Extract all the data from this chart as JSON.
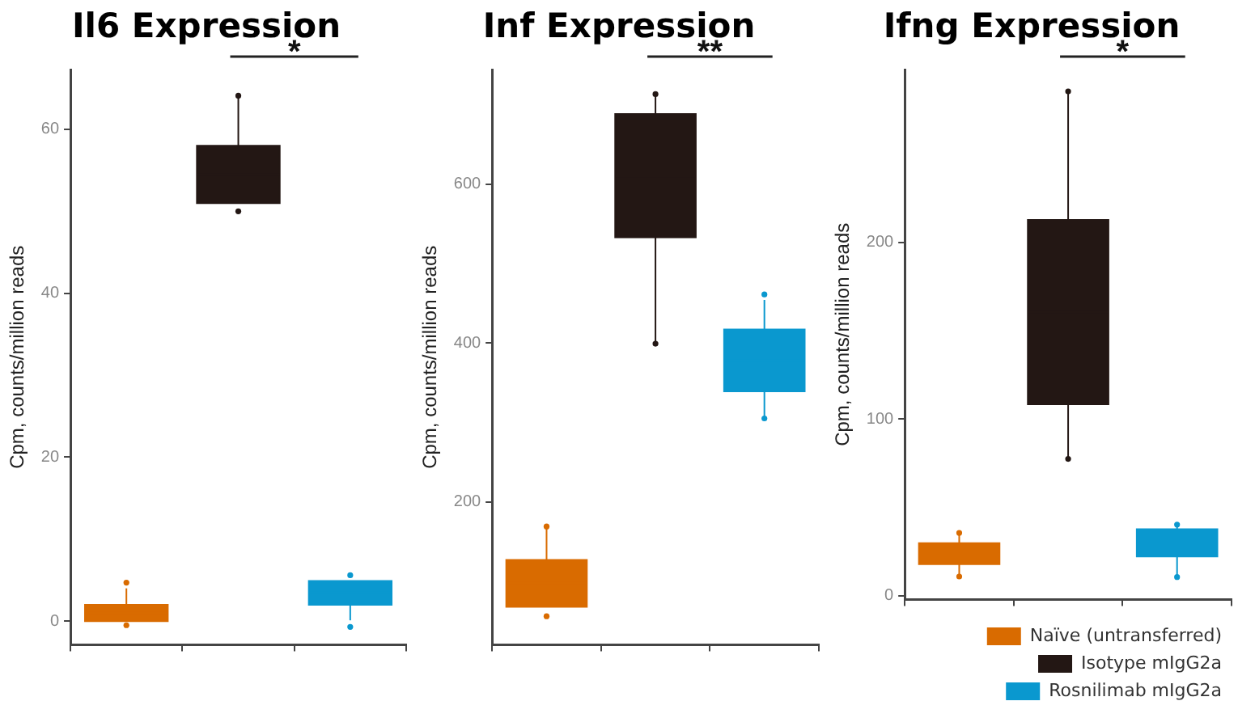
{
  "chart_data": [
    {
      "type": "box",
      "title": "Il6 Expression",
      "ylabel": "Cpm, counts/million reads",
      "categories": [
        null,
        null,
        null
      ],
      "ylim": [
        -2.9,
        67.3
      ],
      "yticks": [
        0,
        20,
        40,
        60
      ],
      "grid": false,
      "annotations": [
        "*"
      ],
      "series": [
        {
          "color": "#d96b00",
          "boxes": [
            {
              "low": 0,
              "q1": 0,
              "median": 1,
              "q3": 2,
              "high": 4,
              "outliers": [
                4.7,
                -0.5
              ]
            },
            null,
            null
          ]
        },
        {
          "color": "#231714",
          "boxes": [
            null,
            {
              "low": 51,
              "q1": 51,
              "median": 54.5,
              "q3": 58,
              "high": 64,
              "outliers": [
                64.1,
                50
              ]
            },
            null
          ]
        },
        {
          "color": "#0a98cf",
          "boxes": [
            null,
            null,
            {
              "low": 0.1,
              "q1": 2,
              "median": 3.5,
              "q3": 4.9,
              "high": 4.9,
              "outliers": [
                5.6,
                -0.7
              ]
            }
          ]
        }
      ]
    },
    {
      "type": "box",
      "title": "Inf Expression",
      "ylabel": "Cpm, counts/million reads",
      "categories": [
        null,
        null,
        null
      ],
      "ylim": [
        20,
        744
      ],
      "yticks": [
        200,
        400,
        600
      ],
      "grid": false,
      "annotations": [
        "**"
      ],
      "series": [
        {
          "color": "#d96b00",
          "boxes": [
            {
              "low": 68,
              "q1": 68,
              "median": 98,
              "q3": 127,
              "high": 169,
              "outliers": [
                169,
                56
              ]
            },
            null,
            null
          ]
        },
        {
          "color": "#231714",
          "boxes": [
            null,
            {
              "low": 399,
              "q1": 533,
              "median": 610,
              "q3": 688,
              "high": 713,
              "outliers": [
                713,
                399
              ]
            },
            null
          ]
        },
        {
          "color": "#0a98cf",
          "boxes": [
            null,
            null,
            {
              "low": 305,
              "q1": 339,
              "median": 378,
              "q3": 417,
              "high": 454,
              "outliers": [
                461,
                305
              ]
            }
          ]
        }
      ]
    },
    {
      "type": "box",
      "title": "Ifng Expression",
      "ylabel": "Cpm, counts/million reads",
      "categories": [
        null,
        null,
        null
      ],
      "ylim": [
        -2.3,
        298
      ],
      "yticks": [
        0,
        100,
        200
      ],
      "grid": false,
      "annotations": [
        "*"
      ],
      "legend": "bottom",
      "series": [
        {
          "name": "Naïve (untransferred)",
          "color": "#d96b00",
          "boxes": [
            {
              "low": 12.2,
              "q1": 17.8,
              "median": 23.7,
              "q3": 29.7,
              "high": 35.5,
              "outliers": [
                35.5,
                10.8
              ]
            },
            null,
            null
          ]
        },
        {
          "name": "Isotype mIgG2a",
          "color": "#231714",
          "boxes": [
            null,
            {
              "low": 77.4,
              "q1": 108.4,
              "median": 160.6,
              "q3": 212.8,
              "high": 285.6,
              "outliers": [
                285.6,
                77.4
              ]
            },
            null
          ]
        },
        {
          "name": "Rosnilimab mIgG2a",
          "color": "#0a98cf",
          "boxes": [
            null,
            null,
            {
              "low": 10.5,
              "q1": 22.1,
              "median": 29.8,
              "q3": 37.6,
              "high": 40.2,
              "outliers": [
                40.2,
                10.5
              ]
            }
          ]
        }
      ]
    }
  ]
}
